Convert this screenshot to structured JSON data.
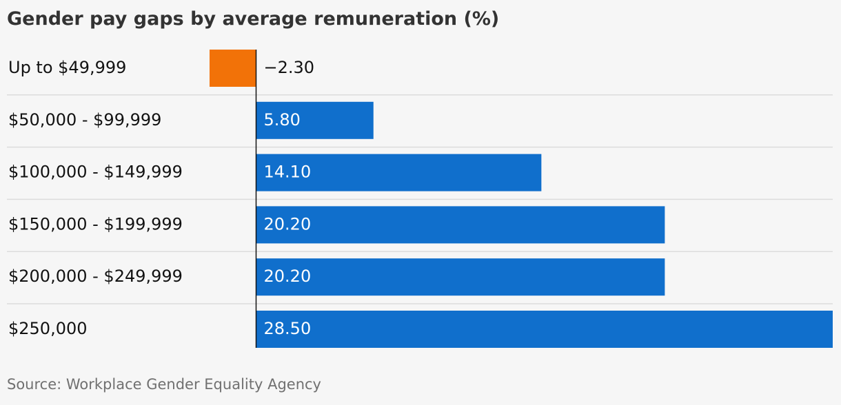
{
  "chart_data": {
    "type": "bar",
    "orientation": "horizontal",
    "title": "Gender pay gaps by average remuneration (%)",
    "source": "Source: Workplace Gender Equality Agency",
    "categories": [
      "Up to $49,999",
      "$50,000 - $99,999",
      "$100,000 - $149,999",
      "$150,000 - $199,999",
      "$200,000 - $249,999",
      "$250,000"
    ],
    "values": [
      -2.3,
      5.8,
      14.1,
      20.2,
      20.2,
      28.5
    ],
    "value_labels": [
      "−2.30",
      "5.80",
      "14.10",
      "20.20",
      "20.20",
      "28.50"
    ],
    "xlim": [
      -2.3,
      28.5
    ],
    "grid": false,
    "colors": {
      "positive": "#106fcc",
      "negative": "#f27208",
      "axis": "#121212",
      "separator": "#dcdcdc"
    }
  }
}
